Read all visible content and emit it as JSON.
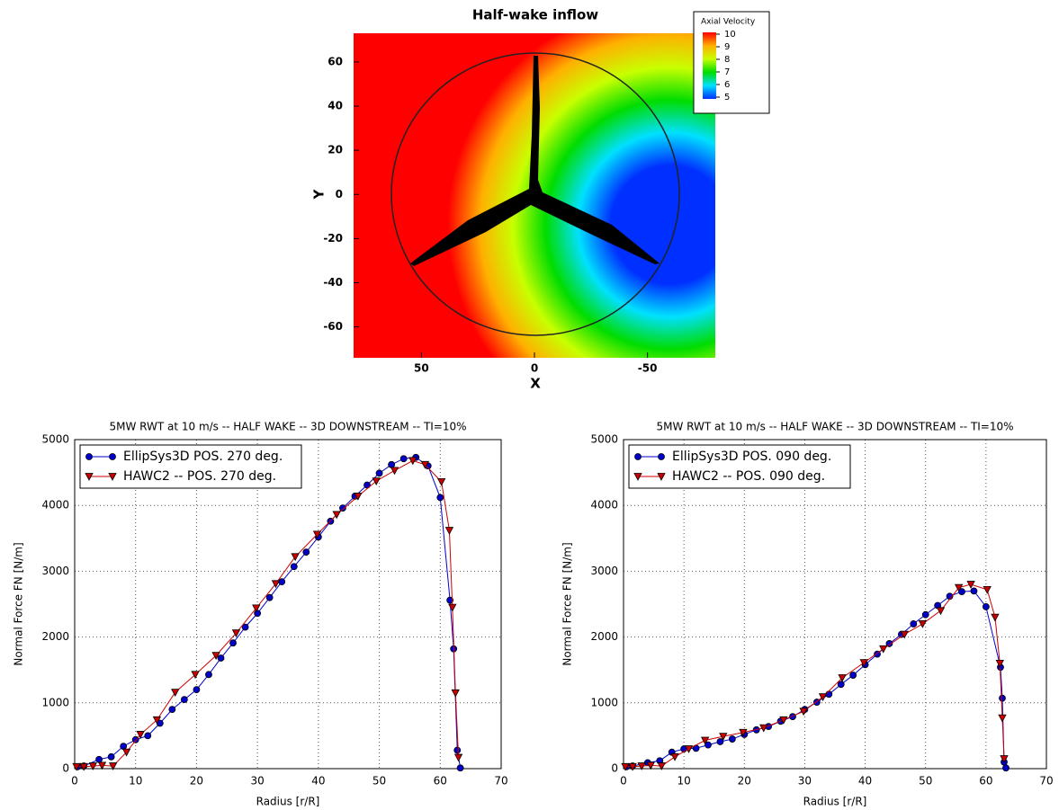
{
  "chart_data": [
    {
      "type": "contour",
      "title": "Half-wake inflow",
      "xlabel": "X",
      "ylabel": "Y",
      "xlim": [
        80,
        -80
      ],
      "xticks": [
        50,
        0,
        -50
      ],
      "ylim": [
        -74,
        73
      ],
      "yticks": [
        60,
        40,
        20,
        0,
        -20,
        -40,
        -60
      ],
      "colorbar": {
        "title": "Axial Velocity",
        "ticks": [
          10,
          9,
          8,
          7,
          6,
          5
        ],
        "colors": [
          "#ff0000",
          "#ffb000",
          "#c8ff00",
          "#00dd00",
          "#00e0ff",
          "#0030ff"
        ]
      }
    },
    {
      "type": "line",
      "title": "5MW RWT at 10 m/s -- HALF WAKE -- 3D DOWNSTREAM -- TI=10%",
      "xlabel": "Radius [r/R]",
      "ylabel": "Normal Force FN [N/m]",
      "xlim": [
        0,
        70
      ],
      "xticks": [
        0,
        10,
        20,
        30,
        40,
        50,
        60,
        70
      ],
      "ylim": [
        0,
        5000
      ],
      "yticks": [
        0,
        1000,
        2000,
        3000,
        4000,
        5000
      ],
      "grid": true,
      "legend": "upper left",
      "series": [
        {
          "name": "EllipSys3D POS. 270 deg.",
          "color": "#0000cc",
          "marker": "circle",
          "x": [
            0.5,
            1.5,
            4,
            6,
            8,
            10,
            12,
            14,
            16,
            18,
            20,
            22,
            24,
            26,
            28,
            30,
            32,
            34,
            36,
            38,
            40,
            42,
            44,
            46,
            48,
            50,
            52,
            54,
            56,
            58,
            60,
            61.6,
            62.2,
            62.8,
            63.3
          ],
          "values": [
            30,
            40,
            140,
            180,
            340,
            440,
            500,
            690,
            900,
            1050,
            1200,
            1430,
            1680,
            1910,
            2150,
            2360,
            2600,
            2840,
            3070,
            3290,
            3520,
            3760,
            3960,
            4140,
            4310,
            4490,
            4620,
            4710,
            4730,
            4600,
            4120,
            2560,
            1820,
            280,
            10
          ]
        },
        {
          "name": "HAWC2 -- POS. 270 deg.",
          "color": "#cc0000",
          "marker": "triangle-down",
          "x": [
            0.3,
            1.5,
            3,
            4.5,
            6.3,
            8.5,
            10.8,
            13.5,
            16.5,
            19.8,
            23.2,
            26.5,
            29.8,
            33,
            36.2,
            39.8,
            43,
            46.5,
            49.5,
            52.5,
            55.5,
            57.5,
            60.2,
            61.5,
            62,
            62.5,
            63
          ],
          "values": [
            30,
            30,
            40,
            50,
            40,
            250,
            520,
            740,
            1160,
            1430,
            1720,
            2060,
            2440,
            2810,
            3220,
            3560,
            3860,
            4140,
            4370,
            4530,
            4680,
            4620,
            4360,
            3620,
            2450,
            1150,
            170
          ]
        }
      ]
    },
    {
      "type": "line",
      "title": "5MW RWT at 10 m/s -- HALF WAKE -- 3D DOWNSTREAM -- TI=10%",
      "xlabel": "Radius [r/R]",
      "ylabel": "Normal Force FN [N/m]",
      "xlim": [
        0,
        70
      ],
      "xticks": [
        0,
        10,
        20,
        30,
        40,
        50,
        60,
        70
      ],
      "ylim": [
        0,
        5000
      ],
      "yticks": [
        0,
        1000,
        2000,
        3000,
        4000,
        5000
      ],
      "grid": true,
      "legend": "upper left",
      "series": [
        {
          "name": "EllipSys3D POS. 090 deg.",
          "color": "#0000cc",
          "marker": "circle",
          "x": [
            0.5,
            1.5,
            4,
            6,
            8,
            10,
            12,
            14,
            16,
            18,
            20,
            22,
            24,
            26,
            28,
            30,
            32,
            34,
            36,
            38,
            40,
            42,
            44,
            46,
            48,
            50,
            52,
            54,
            56,
            58,
            60,
            62.4,
            62.7,
            63,
            63.3
          ],
          "values": [
            30,
            40,
            90,
            120,
            250,
            300,
            310,
            360,
            410,
            450,
            520,
            590,
            640,
            720,
            790,
            900,
            1010,
            1130,
            1280,
            1420,
            1580,
            1740,
            1900,
            2040,
            2200,
            2340,
            2480,
            2620,
            2690,
            2700,
            2460,
            1540,
            1070,
            100,
            10
          ]
        },
        {
          "name": "HAWC2 -- POS. 090 deg.",
          "color": "#cc0000",
          "marker": "triangle-down",
          "x": [
            0.3,
            1.5,
            3,
            4.5,
            6.3,
            8.5,
            10.8,
            13.5,
            16.5,
            19.8,
            23.2,
            26.5,
            29.8,
            33,
            36.2,
            39.8,
            43,
            46.5,
            49.5,
            52.5,
            55.5,
            57.5,
            60.2,
            61.5,
            62.3,
            62.7,
            63
          ],
          "values": [
            30,
            30,
            40,
            50,
            40,
            180,
            300,
            430,
            490,
            550,
            620,
            740,
            870,
            1090,
            1380,
            1610,
            1820,
            2040,
            2200,
            2400,
            2750,
            2800,
            2720,
            2300,
            1600,
            770,
            150
          ]
        }
      ]
    }
  ]
}
